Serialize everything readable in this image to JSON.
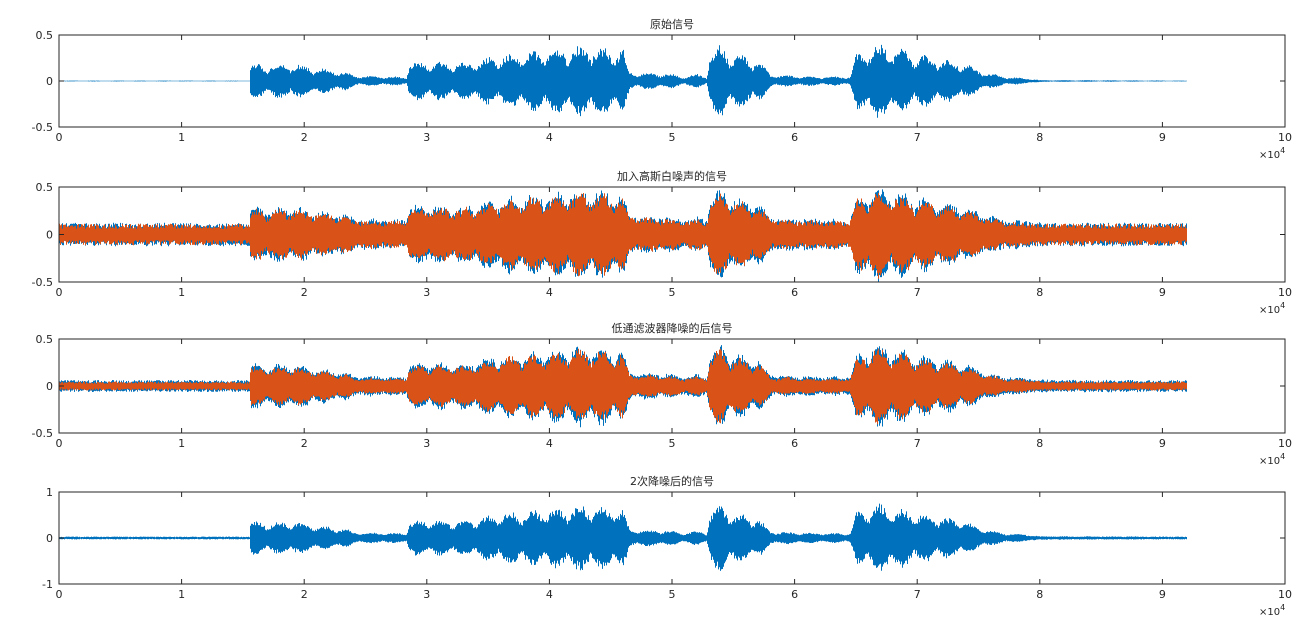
{
  "colors": {
    "blue": "#0072BD",
    "orange": "#D95319",
    "axis": "#262626"
  },
  "x_tick_labels": [
    "0",
    "1",
    "2",
    "3",
    "4",
    "5",
    "6",
    "7",
    "8",
    "9",
    "10"
  ],
  "x_multiplier": "×10",
  "x_multiplier_exp": "4",
  "chart_data": [
    {
      "type": "line",
      "title": "原始信号",
      "xlim": [
        0,
        100000
      ],
      "ylim": [
        -0.5,
        0.5
      ],
      "y_tick_labels": [
        "-0.5",
        "0",
        "0.5"
      ],
      "sample_count": 92000,
      "series": [
        {
          "color": "#0072BD",
          "envelope": {
            "x": [
              0,
              15500,
              15600,
              17000,
              19000,
              21000,
              22500,
              23500,
              24000,
              27000,
              28300,
              28500,
              30000,
              33000,
              36000,
              40000,
              43000,
              46000,
              46500,
              50000,
              51000,
              52000,
              52800,
              53000,
              54000,
              55000,
              57000,
              58000,
              60000,
              62000,
              64500,
              65000,
              66500,
              68000,
              70000,
              72000,
              74000,
              75000,
              77000,
              79000,
              80000,
              92000
            ],
            "amp": [
              0.005,
              0.005,
              0.2,
              0.18,
              0.2,
              0.15,
              0.12,
              0.1,
              0.06,
              0.05,
              0.05,
              0.2,
              0.22,
              0.2,
              0.3,
              0.35,
              0.4,
              0.35,
              0.1,
              0.08,
              0.05,
              0.08,
              0.05,
              0.3,
              0.42,
              0.3,
              0.25,
              0.07,
              0.06,
              0.05,
              0.05,
              0.3,
              0.42,
              0.38,
              0.3,
              0.25,
              0.2,
              0.12,
              0.05,
              0.03,
              0.01,
              0.005
            ]
          }
        }
      ]
    },
    {
      "type": "line",
      "title": "加入高斯白噪声的信号",
      "xlim": [
        0,
        100000
      ],
      "ylim": [
        -0.5,
        0.5
      ],
      "y_tick_labels": [
        "-0.5",
        "0",
        "0.5"
      ],
      "sample_count": 92000,
      "series": [
        {
          "color": "#0072BD",
          "noise_level": 0.1
        },
        {
          "color": "#D95319",
          "noise_level": 0.1
        }
      ]
    },
    {
      "type": "line",
      "title": "低通滤波器降噪的后信号",
      "xlim": [
        0,
        100000
      ],
      "ylim": [
        -0.5,
        0.5
      ],
      "y_tick_labels": [
        "-0.5",
        "0",
        "0.5"
      ],
      "sample_count": 92000,
      "series": [
        {
          "color": "#0072BD",
          "noise_level": 0.05
        },
        {
          "color": "#D95319",
          "noise_level": 0.04
        }
      ]
    },
    {
      "type": "line",
      "title": "2次降噪后的信号",
      "xlim": [
        0,
        100000
      ],
      "ylim": [
        -1,
        1
      ],
      "y_tick_labels": [
        "-1",
        "0",
        "1"
      ],
      "sample_count": 92000,
      "series": [
        {
          "color": "#0072BD",
          "noise_level": 0.02,
          "gain": 1.8
        }
      ]
    }
  ]
}
